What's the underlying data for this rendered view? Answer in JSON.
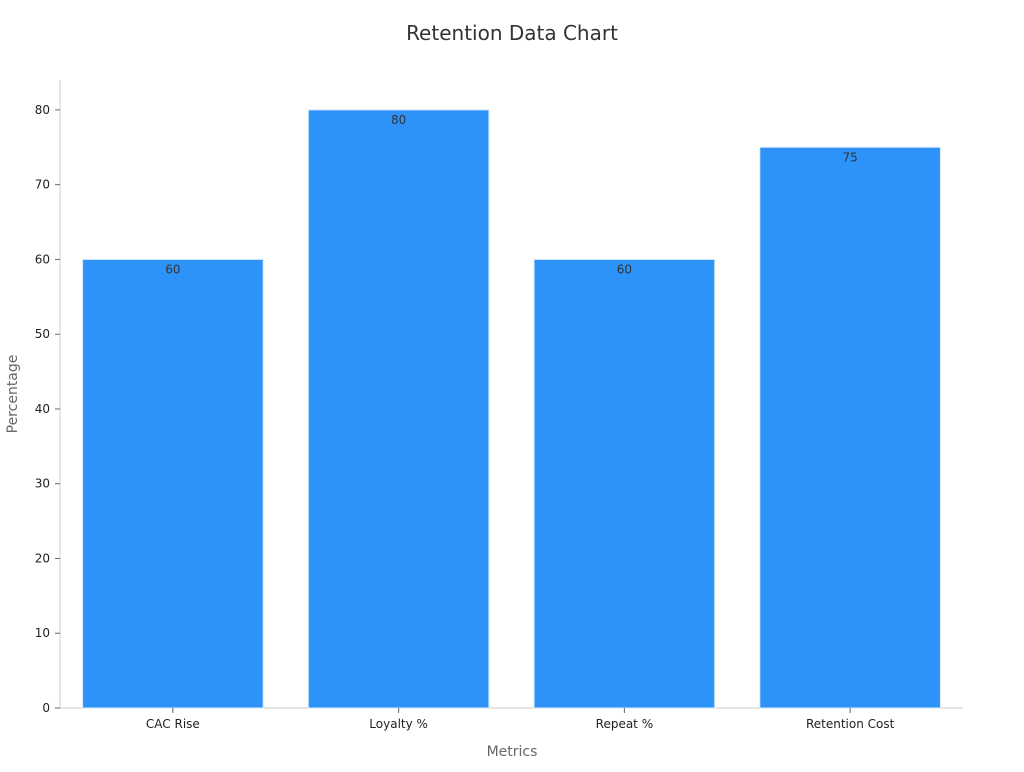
{
  "chart_data": {
    "type": "bar",
    "title": "Retention Data Chart",
    "xlabel": "Metrics",
    "ylabel": "Percentage",
    "categories": [
      "CAC Rise",
      "Loyalty %",
      "Repeat %",
      "Retention Cost"
    ],
    "values": [
      60,
      80,
      60,
      75
    ],
    "data_labels": [
      "60",
      "80",
      "60",
      "75"
    ],
    "ylim": [
      0,
      84
    ],
    "yticks": [
      0,
      10,
      20,
      30,
      40,
      50,
      60,
      70,
      80
    ],
    "grid": false,
    "legend": "none",
    "colors": {
      "bar": "#2e93f8",
      "bar_edge": "#d6e9fb",
      "axis": "#cccccc",
      "tick_text": "#222222",
      "label_text": "#666666",
      "title_text": "#333333",
      "data_label_text": "#333333"
    }
  }
}
